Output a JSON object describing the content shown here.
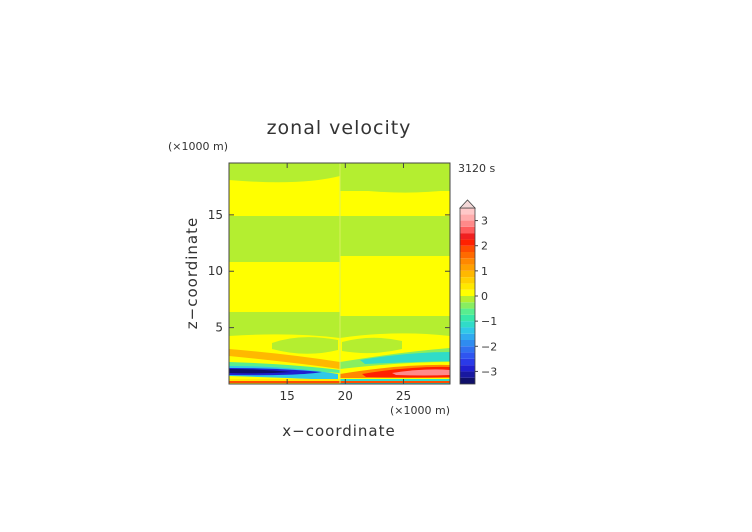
{
  "chart_data": {
    "type": "heatmap",
    "title": "zonal velocity",
    "time_label": "3120 s",
    "xlabel": "x−coordinate",
    "ylabel": "z−coordinate",
    "x_unit": "(×1000 m)",
    "y_unit": "(×1000 m)",
    "xlim": [
      10,
      29
    ],
    "ylim": [
      0,
      19.6
    ],
    "x_ticks": [
      15,
      20,
      25
    ],
    "y_ticks": [
      5,
      10,
      15
    ],
    "colorbar": {
      "levels": [
        -3.5,
        -3.25,
        -3,
        -2.75,
        -2.5,
        -2.25,
        -2,
        -1.75,
        -1.5,
        -1.25,
        -1,
        -0.75,
        -0.5,
        -0.25,
        0,
        0.25,
        0.5,
        0.75,
        1,
        1.25,
        1.5,
        1.75,
        2,
        2.25,
        2.5,
        2.75,
        3,
        3.25,
        3.5
      ],
      "colors": [
        "#10106a",
        "#1818a0",
        "#2020d0",
        "#2a3ae8",
        "#2f55f0",
        "#3070f0",
        "#2f8cf0",
        "#30aaf0",
        "#30c8e8",
        "#30dcc8",
        "#38e8a8",
        "#58ee90",
        "#88ee60",
        "#b4ee30",
        "#ffff00",
        "#ffe800",
        "#ffd000",
        "#ffb800",
        "#ffa000",
        "#ff8800",
        "#ff6a00",
        "#ff4c00",
        "#ff2000",
        "#f02020",
        "#ff5c5c",
        "#ff8a8a",
        "#ffacac",
        "#ffc8c8"
      ],
      "tick_labels": [
        "3",
        "2",
        "1",
        "0",
        "−1",
        "−2",
        "−3"
      ],
      "tick_values": [
        3,
        2,
        1,
        0,
        -1,
        -2,
        -3
      ]
    }
  }
}
